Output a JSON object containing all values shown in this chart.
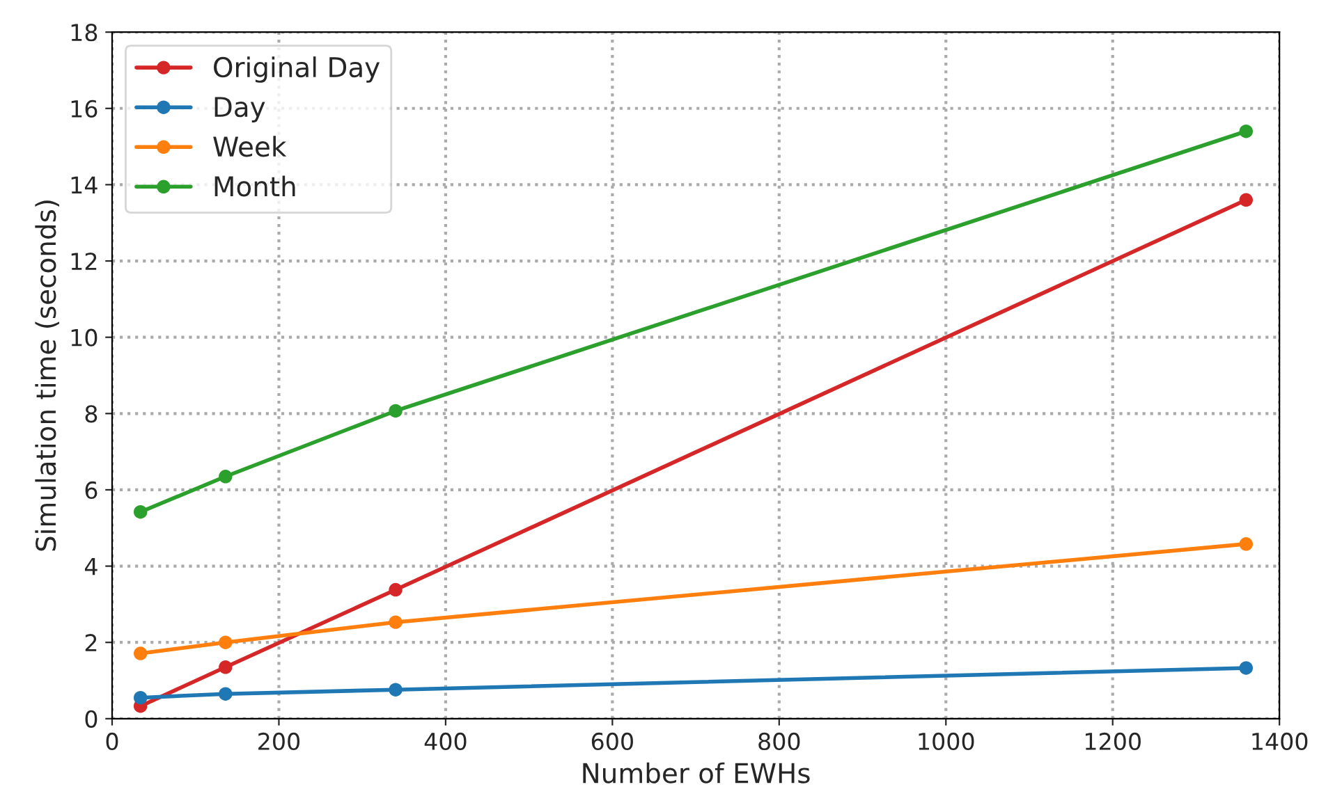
{
  "chart_data": {
    "type": "line",
    "xlabel": "Number of EWHs",
    "ylabel": "Simulation time (seconds)",
    "x": [
      34,
      136,
      340,
      1360
    ],
    "series": [
      {
        "name": "Original Day",
        "color": "#d62728",
        "values": [
          0.33,
          1.35,
          3.38,
          13.6
        ]
      },
      {
        "name": "Day",
        "color": "#1f77b4",
        "values": [
          0.55,
          0.65,
          0.76,
          1.33
        ]
      },
      {
        "name": "Week",
        "color": "#ff7f0e",
        "values": [
          1.71,
          2.0,
          2.53,
          4.58
        ]
      },
      {
        "name": "Month",
        "color": "#2ca02c",
        "values": [
          5.42,
          6.35,
          8.07,
          15.4
        ]
      }
    ],
    "xlim": [
      0,
      1400
    ],
    "xticks": [
      0,
      200,
      400,
      600,
      800,
      1000,
      1200,
      1400
    ],
    "ylim": [
      0,
      18
    ],
    "yticks": [
      0,
      2,
      4,
      6,
      8,
      10,
      12,
      14,
      16,
      18
    ],
    "grid": true,
    "legend": "top left",
    "marker": "circle",
    "line_style": "solid"
  }
}
